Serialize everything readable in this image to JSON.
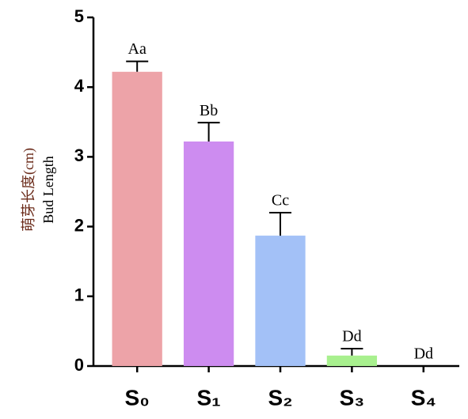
{
  "chart_data": {
    "type": "bar",
    "y_label_lines": [
      "萌芽长度(cm)",
      "Bud Length"
    ],
    "categories": [
      "S₀",
      "S₁",
      "S₂",
      "S₃",
      "S₄"
    ],
    "values": [
      4.22,
      3.22,
      1.87,
      0.15,
      0
    ],
    "errors": [
      0.15,
      0.27,
      0.33,
      0.1,
      0
    ],
    "annotations": [
      "Aa",
      "Bb",
      "Cc",
      "Dd",
      "Dd"
    ],
    "colors": [
      "#eda3a8",
      "#cd8cf0",
      "#a3c1f7",
      "#a8f08e",
      "#ffffff"
    ],
    "ylim": [
      0,
      5
    ],
    "yticks": [
      0,
      1,
      2,
      3,
      4,
      5
    ],
    "grid": false
  }
}
